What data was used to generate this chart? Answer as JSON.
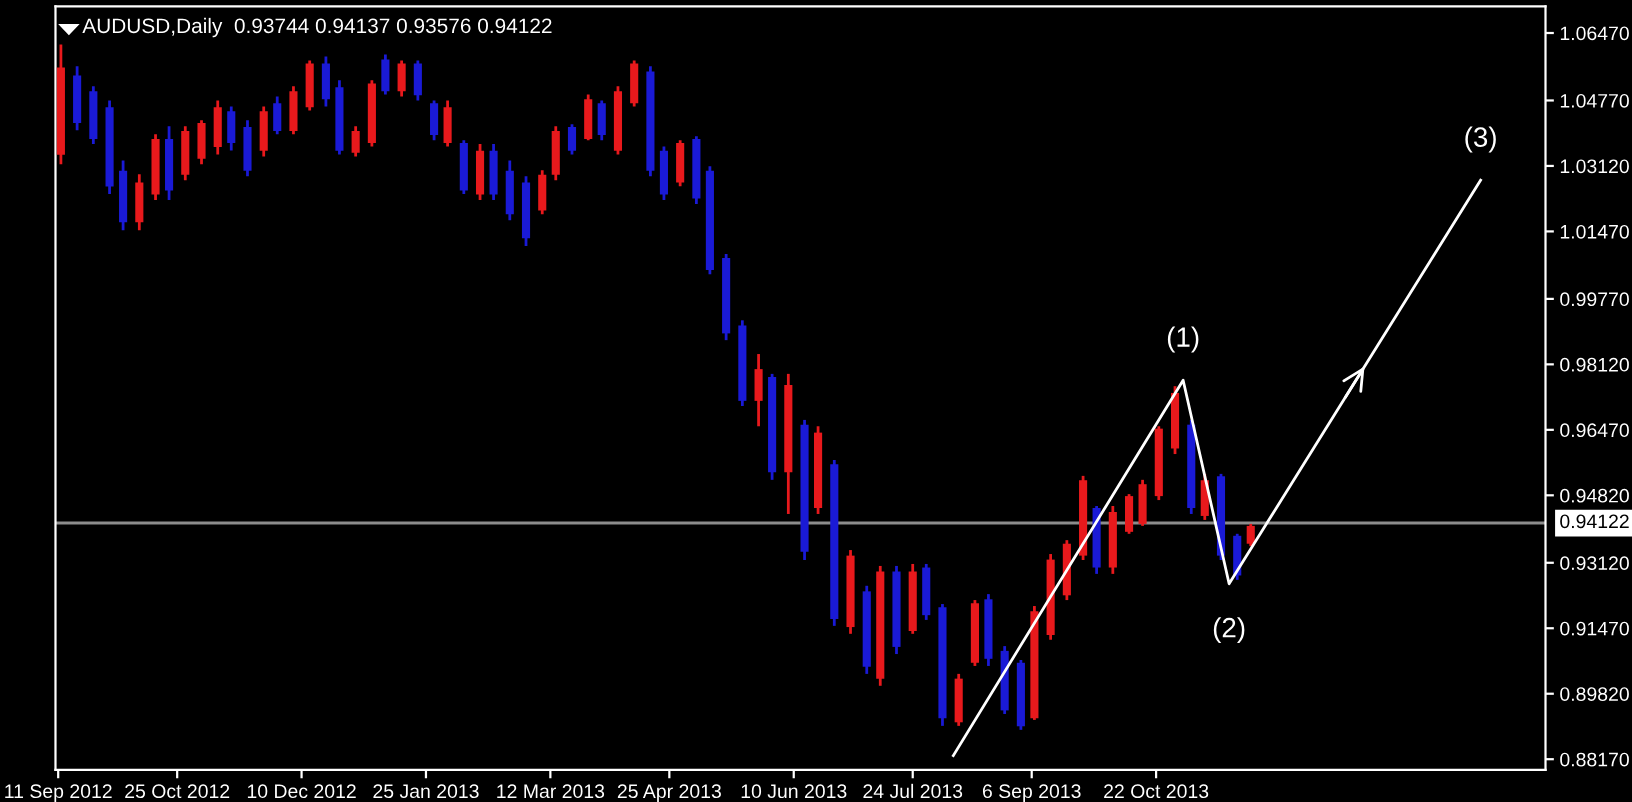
{
  "chart_data": {
    "type": "candlestick",
    "title": "AUDUSD,Daily  0.93744 0.94137 0.93576 0.94122",
    "x": [
      "2012-09-12",
      "2012-09-18",
      "2012-09-24",
      "2012-09-30",
      "2012-10-05",
      "2012-10-11",
      "2012-10-17",
      "2012-10-22",
      "2012-10-28",
      "2012-11-03",
      "2012-11-09",
      "2012-11-14",
      "2012-11-20",
      "2012-11-26",
      "2012-12-01",
      "2012-12-07",
      "2012-12-13",
      "2012-12-19",
      "2012-12-24",
      "2012-12-30",
      "2013-01-05",
      "2013-01-10",
      "2013-01-16",
      "2013-01-22",
      "2013-01-28",
      "2013-02-02",
      "2013-02-08",
      "2013-02-14",
      "2013-02-19",
      "2013-02-25",
      "2013-03-03",
      "2013-03-09",
      "2013-03-14",
      "2013-03-20",
      "2013-03-26",
      "2013-03-31",
      "2013-04-06",
      "2013-04-12",
      "2013-04-18",
      "2013-04-23",
      "2013-04-29",
      "2013-05-05",
      "2013-05-10",
      "2013-05-16",
      "2013-05-22",
      "2013-05-28",
      "2013-06-02",
      "2013-06-08",
      "2013-06-14",
      "2013-06-19",
      "2013-06-25",
      "2013-07-01",
      "2013-07-07",
      "2013-07-12",
      "2013-07-18",
      "2013-07-24",
      "2013-07-29",
      "2013-08-04",
      "2013-08-10",
      "2013-08-16",
      "2013-08-21",
      "2013-08-27",
      "2013-09-02",
      "2013-09-07",
      "2013-09-13",
      "2013-09-19",
      "2013-09-25",
      "2013-09-30",
      "2013-10-06",
      "2013-10-12",
      "2013-10-17",
      "2013-10-23",
      "2013-10-29",
      "2013-11-04",
      "2013-11-09",
      "2013-11-15",
      "2013-11-21",
      "2013-11-26"
    ],
    "ohlc": [
      [
        1.034,
        1.0618,
        1.0316,
        1.056
      ],
      [
        1.054,
        1.0563,
        1.0402,
        1.042
      ],
      [
        1.05,
        1.0513,
        1.0367,
        1.038
      ],
      [
        1.046,
        1.0477,
        1.0241,
        1.026
      ],
      [
        1.03,
        1.0326,
        1.015,
        1.017
      ],
      [
        1.017,
        1.0291,
        1.015,
        1.027
      ],
      [
        1.024,
        1.0392,
        1.0226,
        1.038
      ],
      [
        1.038,
        1.0412,
        1.0226,
        1.025
      ],
      [
        1.029,
        1.0412,
        1.0276,
        1.04
      ],
      [
        1.033,
        1.0427,
        1.0316,
        1.042
      ],
      [
        1.036,
        1.0477,
        1.0341,
        1.046
      ],
      [
        1.045,
        1.0462,
        1.0351,
        1.037
      ],
      [
        1.041,
        1.0427,
        1.0286,
        1.03
      ],
      [
        1.035,
        1.0462,
        1.0336,
        1.045
      ],
      [
        1.047,
        1.0487,
        1.0392,
        1.04
      ],
      [
        1.04,
        1.0513,
        1.0392,
        1.05
      ],
      [
        1.046,
        1.0578,
        1.0452,
        1.057
      ],
      [
        1.057,
        1.0588,
        1.0462,
        1.048
      ],
      [
        1.051,
        1.0528,
        1.0341,
        1.035
      ],
      [
        1.0345,
        1.0412,
        1.0336,
        1.04
      ],
      [
        1.037,
        1.0528,
        1.0361,
        1.052
      ],
      [
        1.058,
        1.0593,
        1.0492,
        1.05
      ],
      [
        1.05,
        1.0578,
        1.0487,
        1.057
      ],
      [
        1.057,
        1.0578,
        1.0477,
        1.049
      ],
      [
        1.047,
        1.0477,
        1.0377,
        1.039
      ],
      [
        1.037,
        1.0477,
        1.0361,
        1.046
      ],
      [
        1.037,
        1.0377,
        1.0241,
        1.025
      ],
      [
        1.024,
        1.0367,
        1.0226,
        1.035
      ],
      [
        1.035,
        1.0367,
        1.0226,
        1.024
      ],
      [
        1.03,
        1.0326,
        1.0175,
        1.019
      ],
      [
        1.027,
        1.0286,
        1.011,
        1.013
      ],
      [
        1.02,
        1.0301,
        1.019,
        1.029
      ],
      [
        1.029,
        1.0412,
        1.0276,
        1.04
      ],
      [
        1.041,
        1.0417,
        1.0341,
        1.035
      ],
      [
        1.038,
        1.0492,
        1.0377,
        1.048
      ],
      [
        1.047,
        1.0477,
        1.0377,
        1.039
      ],
      [
        1.035,
        1.0513,
        1.0341,
        1.05
      ],
      [
        1.047,
        1.0578,
        1.0462,
        1.057
      ],
      [
        1.055,
        1.0563,
        1.0286,
        1.03
      ],
      [
        1.035,
        1.0361,
        1.0226,
        1.024
      ],
      [
        1.027,
        1.0377,
        1.0261,
        1.037
      ],
      [
        1.038,
        1.0387,
        1.0216,
        1.023
      ],
      [
        1.03,
        1.0311,
        1.0039,
        1.005
      ],
      [
        1.008,
        1.009,
        0.9873,
        0.989
      ],
      [
        0.991,
        0.9923,
        0.9707,
        0.972
      ],
      [
        0.972,
        0.9838,
        0.9656,
        0.98
      ],
      [
        0.978,
        0.9788,
        0.9521,
        0.954
      ],
      [
        0.954,
        0.9788,
        0.9435,
        0.976
      ],
      [
        0.966,
        0.9672,
        0.9319,
        0.934
      ],
      [
        0.945,
        0.9656,
        0.9435,
        0.964
      ],
      [
        0.956,
        0.9571,
        0.9153,
        0.917
      ],
      [
        0.915,
        0.9344,
        0.9133,
        0.933
      ],
      [
        0.924,
        0.9254,
        0.9032,
        0.905
      ],
      [
        0.902,
        0.9304,
        0.9002,
        0.929
      ],
      [
        0.929,
        0.9304,
        0.9082,
        0.91
      ],
      [
        0.914,
        0.9309,
        0.9133,
        0.929
      ],
      [
        0.93,
        0.9309,
        0.9168,
        0.918
      ],
      [
        0.92,
        0.9208,
        0.8901,
        0.892
      ],
      [
        0.891,
        0.9032,
        0.8901,
        0.902
      ],
      [
        0.906,
        0.9218,
        0.9052,
        0.921
      ],
      [
        0.922,
        0.9233,
        0.9052,
        0.907
      ],
      [
        0.909,
        0.9102,
        0.8931,
        0.894
      ],
      [
        0.906,
        0.9067,
        0.8891,
        0.89
      ],
      [
        0.892,
        0.9203,
        0.8916,
        0.919
      ],
      [
        0.913,
        0.9334,
        0.9118,
        0.932
      ],
      [
        0.923,
        0.9369,
        0.9218,
        0.936
      ],
      [
        0.933,
        0.9531,
        0.9319,
        0.952
      ],
      [
        0.945,
        0.9455,
        0.9284,
        0.93
      ],
      [
        0.93,
        0.9455,
        0.9284,
        0.944
      ],
      [
        0.939,
        0.9485,
        0.9385,
        0.948
      ],
      [
        0.941,
        0.9521,
        0.9405,
        0.951
      ],
      [
        0.948,
        0.9656,
        0.947,
        0.965
      ],
      [
        0.96,
        0.9757,
        0.9586,
        0.974
      ],
      [
        0.966,
        0.9672,
        0.9435,
        0.945
      ],
      [
        0.943,
        0.9536,
        0.942,
        0.952
      ],
      [
        0.953,
        0.9536,
        0.9319,
        0.933
      ],
      [
        0.938,
        0.9385,
        0.9269,
        0.928
      ],
      [
        0.936,
        0.941,
        0.9354,
        0.9405
      ]
    ],
    "colors": [
      "#e8191c",
      "#1a1ad6",
      "#1a1ad6",
      "#1a1ad6",
      "#1a1ad6",
      "#e8191c",
      "#e8191c",
      "#1a1ad6",
      "#e8191c",
      "#e8191c",
      "#e8191c",
      "#1a1ad6",
      "#1a1ad6",
      "#e8191c",
      "#1a1ad6",
      "#e8191c",
      "#e8191c",
      "#1a1ad6",
      "#1a1ad6",
      "#e8191c",
      "#e8191c",
      "#1a1ad6",
      "#e8191c",
      "#1a1ad6",
      "#1a1ad6",
      "#e8191c",
      "#1a1ad6",
      "#e8191c",
      "#1a1ad6",
      "#1a1ad6",
      "#1a1ad6",
      "#e8191c",
      "#e8191c",
      "#1a1ad6",
      "#e8191c",
      "#1a1ad6",
      "#e8191c",
      "#e8191c",
      "#1a1ad6",
      "#1a1ad6",
      "#e8191c",
      "#1a1ad6",
      "#1a1ad6",
      "#1a1ad6",
      "#1a1ad6",
      "#e8191c",
      "#1a1ad6",
      "#e8191c",
      "#1a1ad6",
      "#e8191c",
      "#1a1ad6",
      "#e8191c",
      "#1a1ad6",
      "#e8191c",
      "#1a1ad6",
      "#e8191c",
      "#1a1ad6",
      "#1a1ad6",
      "#e8191c",
      "#e8191c",
      "#1a1ad6",
      "#1a1ad6",
      "#1a1ad6",
      "#e8191c",
      "#e8191c",
      "#e8191c",
      "#e8191c",
      "#1a1ad6",
      "#e8191c",
      "#e8191c",
      "#e8191c",
      "#e8191c",
      "#e8191c",
      "#1a1ad6",
      "#e8191c",
      "#1a1ad6",
      "#1a1ad6",
      "#e8191c"
    ],
    "series": [
      {
        "type": "line",
        "color": "#ffffff",
        "x": [
          "2013-08-08",
          "2013-11-01",
          "2013-11-18",
          "2014-02-19"
        ],
        "values": [
          0.8826,
          0.9772,
          0.9259,
          1.0276
        ]
      }
    ],
    "annotations": [
      {
        "text": "(1)",
        "x": "2013-11-01",
        "y": 0.9772
      },
      {
        "text": "(2)",
        "x": "2013-11-18",
        "y": 0.9259
      },
      {
        "text": "(3)",
        "x": "2014-02-19",
        "y": 1.0276
      }
    ],
    "ref_lines": [
      {
        "axis": "y",
        "value": 0.94122,
        "label": "0.94122",
        "color": "#8c8c8c"
      }
    ],
    "xlim": [
      "2012-09-10",
      "2014-03-15"
    ],
    "xticks": [
      {
        "value": "2012-09-11",
        "label": "11 Sep 2012"
      },
      {
        "value": "2012-10-25",
        "label": "25 Oct 2012"
      },
      {
        "value": "2012-12-10",
        "label": "10 Dec 2012"
      },
      {
        "value": "2013-01-25",
        "label": "25 Jan 2013"
      },
      {
        "value": "2013-03-12",
        "label": "12 Mar 2013"
      },
      {
        "value": "2013-04-25",
        "label": "25 Apr 2013"
      },
      {
        "value": "2013-06-10",
        "label": "10 Jun 2013"
      },
      {
        "value": "2013-07-24",
        "label": "24 Jul 2013"
      },
      {
        "value": "2013-09-06",
        "label": "6 Sep 2013"
      },
      {
        "value": "2013-10-22",
        "label": "22 Oct 2013"
      }
    ],
    "ylim": [
      0.879,
      1.0714
    ],
    "yticks": [
      {
        "value": 0.8817,
        "label": "0.88170"
      },
      {
        "value": 0.8982,
        "label": "0.89820"
      },
      {
        "value": 0.9147,
        "label": "0.91470"
      },
      {
        "value": 0.9312,
        "label": "0.93120"
      },
      {
        "value": 0.9482,
        "label": "0.94820"
      },
      {
        "value": 0.9647,
        "label": "0.96470"
      },
      {
        "value": 0.9812,
        "label": "0.98120"
      },
      {
        "value": 0.9977,
        "label": "0.99770"
      },
      {
        "value": 1.0147,
        "label": "1.01470"
      },
      {
        "value": 1.0312,
        "label": "1.03120"
      },
      {
        "value": 1.0477,
        "label": "1.04770"
      },
      {
        "value": 1.0647,
        "label": "1.06470"
      }
    ],
    "grid": false,
    "legend": false
  }
}
